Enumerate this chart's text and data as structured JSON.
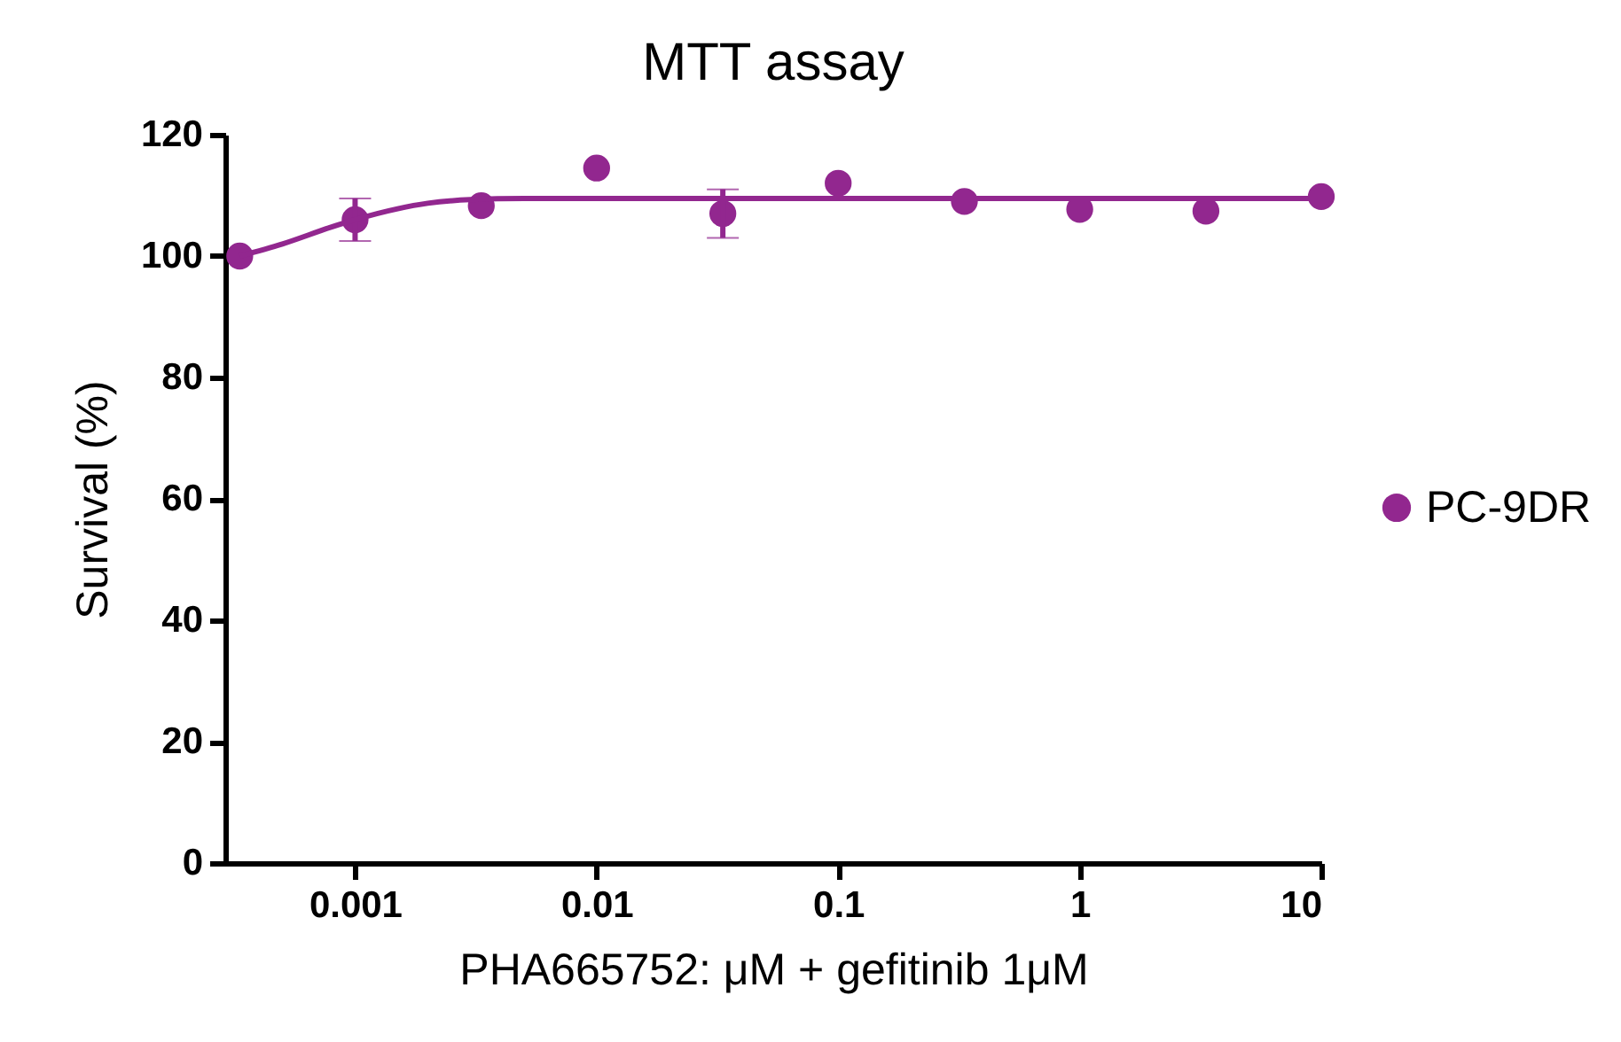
{
  "chart_data": {
    "type": "scatter",
    "title": "MTT assay",
    "xlabel": "PHA665752: μM + gefitinib 1μM",
    "ylabel": "Survival (%)",
    "log": "x",
    "grid": false,
    "legend": "right",
    "line_style": "solid",
    "xlim": [
      0.00029,
      10
    ],
    "xticks": [
      0.001,
      0.01,
      0.1,
      1,
      10
    ],
    "ylim": [
      0,
      120
    ],
    "yticks": [
      0,
      20,
      40,
      60,
      80,
      100,
      120
    ],
    "series": [
      {
        "name": "PC-9DR",
        "marker": "circle",
        "color": "#92278f",
        "x": [
          0.000333,
          0.001,
          0.00333,
          0.01,
          0.0333,
          0.1,
          0.333,
          1,
          3.33,
          10
        ],
        "values": [
          100,
          106,
          108.3,
          114.5,
          107,
          112,
          109,
          107.7,
          107.4,
          109.8
        ],
        "errors": [
          null,
          3.5,
          null,
          null,
          4,
          null,
          null,
          null,
          null,
          null
        ]
      },
      {
        "type": "line",
        "color": "#92278f",
        "x": [
          0.000333,
          0.0005,
          0.0008,
          0.001,
          0.0015,
          0.002,
          0.003,
          0.005,
          0.01,
          10
        ],
        "values": [
          100,
          102,
          104.8,
          106,
          107.8,
          108.7,
          109.3,
          109.5,
          109.5,
          109.5
        ]
      }
    ]
  }
}
